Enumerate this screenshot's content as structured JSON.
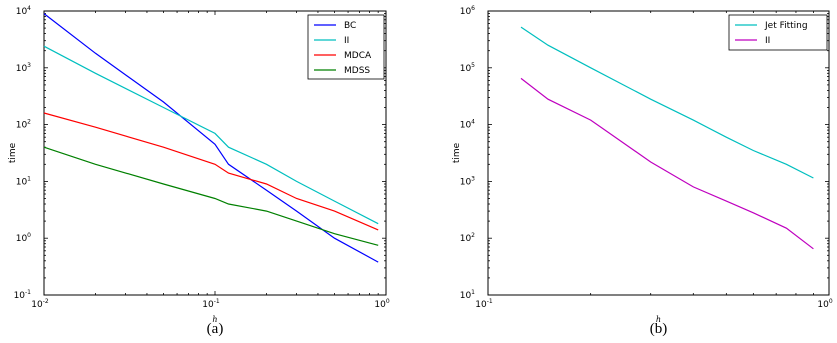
{
  "chart_data": [
    {
      "type": "line",
      "caption": "(a)",
      "xlabel": "h",
      "ylabel": "time",
      "xscale": "log",
      "yscale": "log",
      "xlim": [
        0.01,
        1
      ],
      "ylim": [
        0.1,
        10000
      ],
      "x_ticks": [
        {
          "base": "10",
          "exp": "-2",
          "value": 0.01
        },
        {
          "base": "10",
          "exp": "-1",
          "value": 0.1
        },
        {
          "base": "10",
          "exp": "0",
          "value": 1
        }
      ],
      "y_ticks": [
        {
          "base": "10",
          "exp": "-1",
          "value": 0.1
        },
        {
          "base": "10",
          "exp": "0",
          "value": 1
        },
        {
          "base": "10",
          "exp": "1",
          "value": 10
        },
        {
          "base": "10",
          "exp": "2",
          "value": 100
        },
        {
          "base": "10",
          "exp": "3",
          "value": 1000
        },
        {
          "base": "10",
          "exp": "4",
          "value": 10000
        }
      ],
      "legend_position": "top-right",
      "series": [
        {
          "name": "BC",
          "color": "#0000ff",
          "x": [
            0.01,
            0.02,
            0.05,
            0.1,
            0.12,
            0.2,
            0.3,
            0.5,
            0.9
          ],
          "y": [
            9000,
            1800,
            250,
            45,
            20,
            7,
            3,
            1,
            0.38
          ]
        },
        {
          "name": "II",
          "color": "#00bfbf",
          "x": [
            0.01,
            0.02,
            0.05,
            0.1,
            0.12,
            0.2,
            0.3,
            0.5,
            0.9
          ],
          "y": [
            2400,
            800,
            200,
            70,
            40,
            20,
            10,
            4.5,
            1.8
          ]
        },
        {
          "name": "MDCA",
          "color": "#ff0000",
          "x": [
            0.01,
            0.02,
            0.05,
            0.1,
            0.12,
            0.2,
            0.3,
            0.5,
            0.9
          ],
          "y": [
            160,
            90,
            40,
            20,
            14,
            9,
            5,
            3,
            1.4
          ]
        },
        {
          "name": "MDSS",
          "color": "#008000",
          "x": [
            0.01,
            0.02,
            0.05,
            0.1,
            0.12,
            0.2,
            0.3,
            0.5,
            0.9
          ],
          "y": [
            40,
            20,
            9,
            5,
            4,
            3,
            2,
            1.2,
            0.75
          ]
        }
      ]
    },
    {
      "type": "line",
      "caption": "(b)",
      "xlabel": "h",
      "ylabel": "time",
      "xscale": "log",
      "yscale": "log",
      "xlim": [
        0.1,
        1
      ],
      "ylim": [
        10,
        1000000
      ],
      "x_ticks": [
        {
          "base": "10",
          "exp": "-1",
          "value": 0.1
        },
        {
          "base": "10",
          "exp": "0",
          "value": 1
        }
      ],
      "y_ticks": [
        {
          "base": "10",
          "exp": "1",
          "value": 10
        },
        {
          "base": "10",
          "exp": "2",
          "value": 100
        },
        {
          "base": "10",
          "exp": "3",
          "value": 1000
        },
        {
          "base": "10",
          "exp": "4",
          "value": 10000
        },
        {
          "base": "10",
          "exp": "5",
          "value": 100000
        },
        {
          "base": "10",
          "exp": "6",
          "value": 1000000
        }
      ],
      "legend_position": "top-right",
      "series": [
        {
          "name": "Jet Fitting",
          "color": "#00bfbf",
          "x": [
            0.125,
            0.15,
            0.2,
            0.3,
            0.4,
            0.5,
            0.6,
            0.75,
            0.9
          ],
          "y": [
            520000,
            250000,
            100000,
            28000,
            12000,
            6000,
            3500,
            2000,
            1150
          ]
        },
        {
          "name": "II",
          "color": "#bf00bf",
          "x": [
            0.125,
            0.15,
            0.2,
            0.3,
            0.4,
            0.5,
            0.6,
            0.75,
            0.9
          ],
          "y": [
            65000,
            28000,
            12000,
            2200,
            800,
            450,
            280,
            150,
            65
          ]
        }
      ]
    }
  ]
}
